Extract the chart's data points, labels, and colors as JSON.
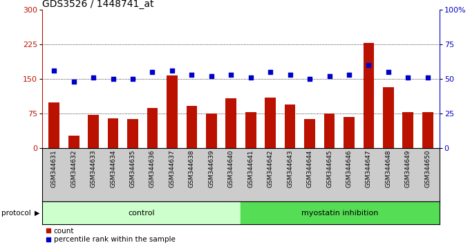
{
  "title": "GDS3526 / 1448741_at",
  "samples": [
    "GSM344631",
    "GSM344632",
    "GSM344633",
    "GSM344634",
    "GSM344635",
    "GSM344636",
    "GSM344637",
    "GSM344638",
    "GSM344639",
    "GSM344640",
    "GSM344641",
    "GSM344642",
    "GSM344643",
    "GSM344644",
    "GSM344645",
    "GSM344646",
    "GSM344647",
    "GSM344648",
    "GSM344649",
    "GSM344650"
  ],
  "counts": [
    100,
    28,
    72,
    65,
    63,
    88,
    158,
    92,
    75,
    108,
    78,
    110,
    95,
    63,
    75,
    68,
    228,
    132,
    78,
    78
  ],
  "percentile_pct": [
    56,
    48,
    51,
    50,
    50,
    55,
    56,
    53,
    52,
    53,
    51,
    55,
    53,
    50,
    52,
    53,
    60,
    55,
    51,
    51
  ],
  "control_count": 10,
  "group_labels": [
    "control",
    "myostatin inhibition"
  ],
  "group_color_light": "#ccffcc",
  "group_color_dark": "#55dd55",
  "bar_color": "#bb1100",
  "dot_color": "#0000cc",
  "left_yticks": [
    0,
    75,
    150,
    225,
    300
  ],
  "right_ytick_vals": [
    0,
    25,
    50,
    75,
    100
  ],
  "right_ytick_labels": [
    "0",
    "25",
    "50",
    "75",
    "100%"
  ],
  "ylim_left": [
    0,
    300
  ],
  "ylim_right": [
    0,
    100
  ],
  "legend_count": "count",
  "legend_percentile": "percentile rank within the sample",
  "bg_color": "#ffffff",
  "xtick_bg": "#cccccc",
  "title_fontsize": 10,
  "tick_fontsize": 8,
  "xtick_fontsize": 6.5,
  "legend_fontsize": 7.5,
  "protocol_fontsize": 7.5,
  "group_fontsize": 8
}
